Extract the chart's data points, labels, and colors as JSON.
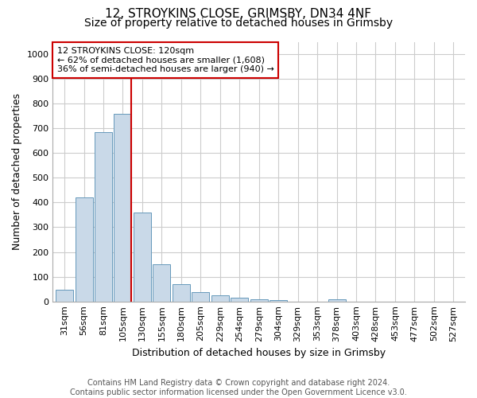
{
  "title_line1": "12, STROYKINS CLOSE, GRIMSBY, DN34 4NF",
  "title_line2": "Size of property relative to detached houses in Grimsby",
  "xlabel": "Distribution of detached houses by size in Grimsby",
  "ylabel": "Number of detached properties",
  "categories": [
    "31sqm",
    "56sqm",
    "81sqm",
    "105sqm",
    "130sqm",
    "155sqm",
    "180sqm",
    "205sqm",
    "229sqm",
    "254sqm",
    "279sqm",
    "304sqm",
    "329sqm",
    "353sqm",
    "378sqm",
    "403sqm",
    "428sqm",
    "453sqm",
    "477sqm",
    "502sqm",
    "527sqm"
  ],
  "values": [
    48,
    420,
    685,
    760,
    360,
    150,
    70,
    37,
    25,
    15,
    10,
    5,
    0,
    0,
    10,
    0,
    0,
    0,
    0,
    0,
    0
  ],
  "bar_color": "#c9d9e8",
  "bar_edge_color": "#6699bb",
  "highlight_line_color": "#cc0000",
  "annotation_text": "12 STROYKINS CLOSE: 120sqm\n← 62% of detached houses are smaller (1,608)\n36% of semi-detached houses are larger (940) →",
  "annotation_box_color": "#ffffff",
  "annotation_box_edge": "#cc0000",
  "ylim": [
    0,
    1050
  ],
  "yticks": [
    0,
    100,
    200,
    300,
    400,
    500,
    600,
    700,
    800,
    900,
    1000
  ],
  "grid_color": "#cccccc",
  "background_color": "#ffffff",
  "footer_line1": "Contains HM Land Registry data © Crown copyright and database right 2024.",
  "footer_line2": "Contains public sector information licensed under the Open Government Licence v3.0.",
  "title_fontsize": 11,
  "subtitle_fontsize": 10,
  "axis_label_fontsize": 9,
  "tick_fontsize": 8,
  "footer_fontsize": 7
}
